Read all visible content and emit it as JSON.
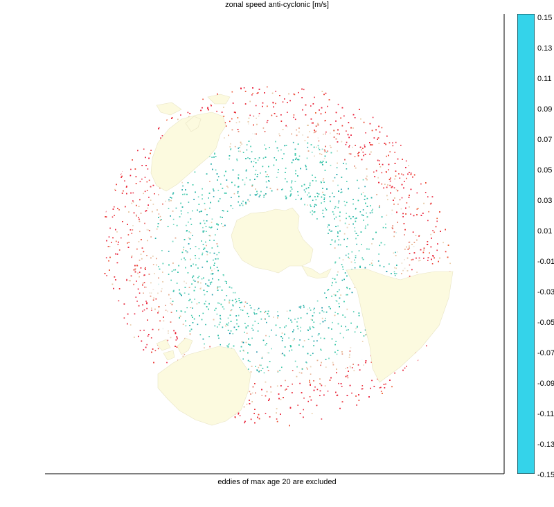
{
  "chart_data": {
    "type": "heatmap",
    "title": "zonal speed anti-cyclonic [m/s]",
    "note": "eddies of max age 20 are excluded",
    "projection": "south polar stereographic",
    "colorbar": {
      "min": -0.15,
      "max": 0.15,
      "tick_labels": [
        "0.15",
        "0.13",
        "0.11",
        "0.09",
        "0.07",
        "0.05",
        "0.03",
        "0.01",
        "-0.01",
        "-0.03",
        "-0.05",
        "-0.07",
        "-0.09",
        "-0.11",
        "-0.13",
        "-0.15"
      ],
      "colormap": [
        {
          "v": -0.15,
          "c": "#34d3ea"
        },
        {
          "v": -0.14,
          "c": "#f8f6a4"
        },
        {
          "v": -0.11,
          "c": "#f2d22e"
        },
        {
          "v": -0.09,
          "c": "#ef7a2c"
        },
        {
          "v": -0.06,
          "c": "#e91c3a"
        },
        {
          "v": -0.04,
          "c": "#e57c6c"
        },
        {
          "v": -0.02,
          "c": "#e7c6a0"
        },
        {
          "v": 0.0,
          "c": "#f4fbff"
        },
        {
          "v": 0.01,
          "c": "#b9e9e0"
        },
        {
          "v": 0.03,
          "c": "#34c7a5"
        },
        {
          "v": 0.06,
          "c": "#1c9eaa"
        },
        {
          "v": 0.1,
          "c": "#0b5aa4"
        },
        {
          "v": 0.13,
          "c": "#0e2e7a"
        },
        {
          "v": 0.15,
          "c": "#06091c"
        }
      ]
    },
    "colors": {
      "land": "#fcfadf",
      "background": "#ffffff",
      "axis": "#000000"
    }
  }
}
